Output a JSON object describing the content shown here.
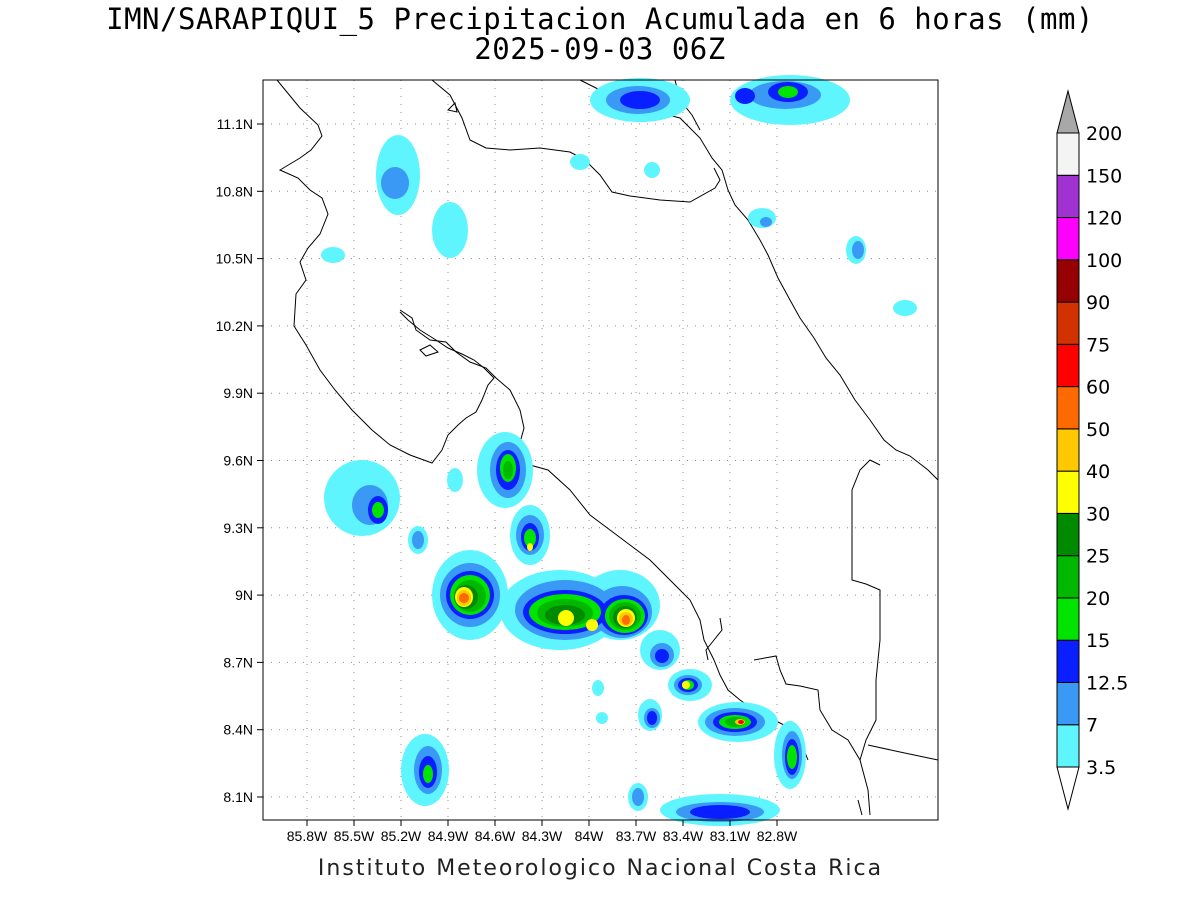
{
  "title_line1": "IMN/SARAPIQUI_5 Precipitacion Acumulada en 6 horas (mm)",
  "title_line2": "2025-09-03 06Z",
  "footer": "Instituto Meteorologico Nacional Costa Rica",
  "lat_ticks": [
    "11.1N",
    "10.8N",
    "10.5N",
    "10.2N",
    "9.9N",
    "9.6N",
    "9.3N",
    "9N",
    "8.7N",
    "8.4N",
    "8.1N"
  ],
  "lon_ticks": [
    "85.8W",
    "85.5W",
    "85.2W",
    "84.9W",
    "84.6W",
    "84.3W",
    "84W",
    "83.7W",
    "83.4W",
    "83.1W",
    "82.8W"
  ],
  "colorbar": {
    "levels": [
      "3.5",
      "7",
      "12.5",
      "15",
      "20",
      "25",
      "30",
      "40",
      "50",
      "60",
      "75",
      "90",
      "100",
      "120",
      "150",
      "200"
    ],
    "colors": [
      "#5ff5ff",
      "#3a99f5",
      "#0a1fff",
      "#00e400",
      "#00b800",
      "#008a00",
      "#ffff00",
      "#ffc800",
      "#ff6a00",
      "#ff0000",
      "#d23200",
      "#960000",
      "#ff00ff",
      "#a032d2",
      "#f4f4f4",
      "#a8a8a8"
    ]
  },
  "legend_units": "mm"
}
